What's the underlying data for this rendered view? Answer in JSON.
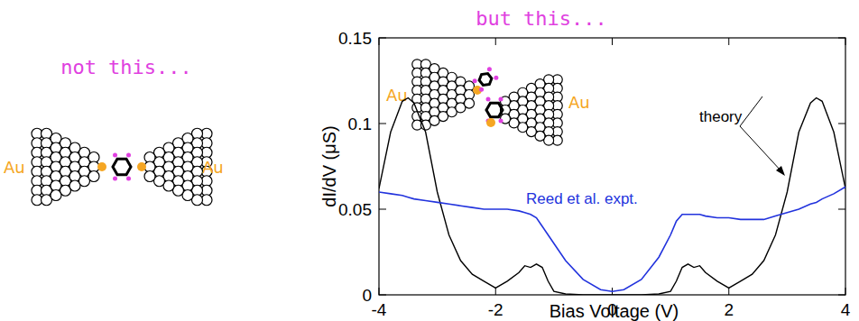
{
  "left_panel": {
    "caption": "not this...",
    "electrode_labels": [
      "Au",
      "Au"
    ]
  },
  "chart_data": {
    "type": "line",
    "title": "but this...",
    "x_label": "Bias Voltage (V)",
    "y_label": "dI/dV (μS)",
    "x": [
      -4,
      -3.8,
      -3.6,
      -3.5,
      -3.4,
      -3.2,
      -3,
      -2.8,
      -2.6,
      -2.4,
      -2.2,
      -2,
      -1.8,
      -1.6,
      -1.5,
      -1.4,
      -1.3,
      -1.2,
      -1.1,
      -1,
      -0.8,
      -0.5,
      -0.2,
      0,
      0.2,
      0.5,
      0.8,
      1,
      1.1,
      1.2,
      1.3,
      1.4,
      1.5,
      1.6,
      1.8,
      2,
      2.2,
      2.4,
      2.6,
      2.8,
      3,
      3.2,
      3.4,
      3.5,
      3.6,
      3.8,
      4
    ],
    "series": [
      {
        "name": "theory",
        "color": "#000000",
        "values": [
          0.062,
          0.095,
          0.113,
          0.115,
          0.112,
          0.095,
          0.06,
          0.035,
          0.02,
          0.012,
          0.008,
          0.004,
          0.008,
          0.013,
          0.017,
          0.016,
          0.018,
          0.016,
          0.008,
          0.002,
          0.0005,
          0,
          0,
          0,
          0,
          0,
          0.0005,
          0.002,
          0.008,
          0.016,
          0.018,
          0.016,
          0.017,
          0.013,
          0.008,
          0.004,
          0.008,
          0.012,
          0.02,
          0.035,
          0.06,
          0.095,
          0.112,
          0.115,
          0.113,
          0.095,
          0.062
        ]
      },
      {
        "name": "Reed et al. expt.",
        "color": "#2233dd",
        "values": [
          0.06,
          0.059,
          0.058,
          0.057,
          0.056,
          0.055,
          0.054,
          0.053,
          0.052,
          0.051,
          0.05,
          0.05,
          0.05,
          0.049,
          0.048,
          0.047,
          0.045,
          0.04,
          0.035,
          0.03,
          0.02,
          0.009,
          0.003,
          0.002,
          0.003,
          0.009,
          0.022,
          0.035,
          0.043,
          0.047,
          0.047,
          0.047,
          0.047,
          0.046,
          0.045,
          0.045,
          0.044,
          0.044,
          0.044,
          0.046,
          0.048,
          0.05,
          0.053,
          0.054,
          0.056,
          0.059,
          0.063
        ]
      }
    ],
    "xlim": [
      -4,
      4
    ],
    "xticks": [
      -4,
      -2,
      0,
      2,
      4
    ],
    "ylim": [
      0,
      0.15
    ],
    "yticks": [
      0,
      0.05,
      0.1,
      0.15
    ],
    "grid": false,
    "inset_labels": [
      "Au",
      "Au"
    ]
  }
}
